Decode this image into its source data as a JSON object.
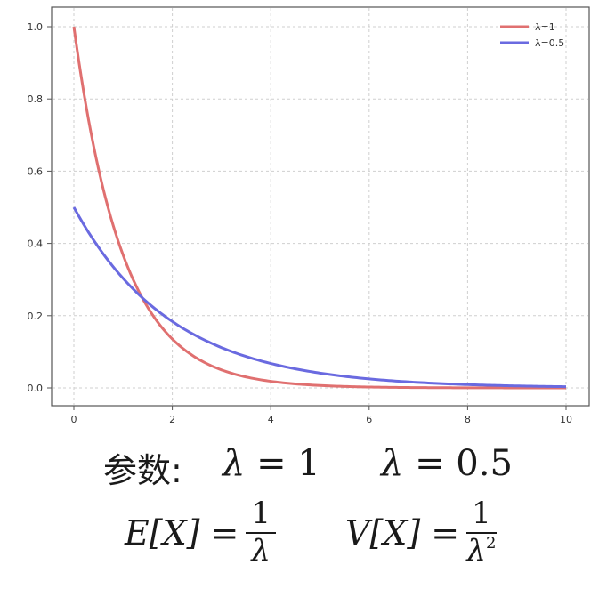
{
  "chart_data": {
    "type": "line",
    "xlim": [
      0,
      10
    ],
    "ylim": [
      0,
      1.0
    ],
    "x_ticks": [
      "0",
      "2",
      "4",
      "6",
      "8",
      "10"
    ],
    "y_ticks": [
      "0.0",
      "0.2",
      "0.4",
      "0.6",
      "0.8",
      "1.0"
    ],
    "grid": true,
    "legend_position": "top-right",
    "series": [
      {
        "name": "λ=1",
        "lambda": 1,
        "color": "#e07070",
        "x": [
          0,
          1,
          2,
          3,
          4,
          5,
          6,
          7,
          8,
          9,
          10
        ],
        "values": [
          1.0,
          0.368,
          0.135,
          0.05,
          0.018,
          0.007,
          0.002,
          0.001,
          0.0,
          0.0,
          0.0
        ]
      },
      {
        "name": "λ=0.5",
        "lambda": 0.5,
        "color": "#6a6ae0",
        "x": [
          0,
          1,
          2,
          3,
          4,
          5,
          6,
          7,
          8,
          9,
          10
        ],
        "values": [
          0.5,
          0.303,
          0.184,
          0.112,
          0.068,
          0.041,
          0.025,
          0.015,
          0.009,
          0.006,
          0.003
        ]
      }
    ]
  },
  "formulas": {
    "params_label": "参数:",
    "param1_symbol": "λ",
    "param1_value": "= 1",
    "param2_symbol": "λ",
    "param2_value": "= 0.5",
    "expectation_lhs": "E[X] =",
    "expectation_num": "1",
    "expectation_den": "λ",
    "variance_lhs": "V[X] =",
    "variance_num": "1",
    "variance_den": "λ",
    "variance_den_exp": "2"
  }
}
